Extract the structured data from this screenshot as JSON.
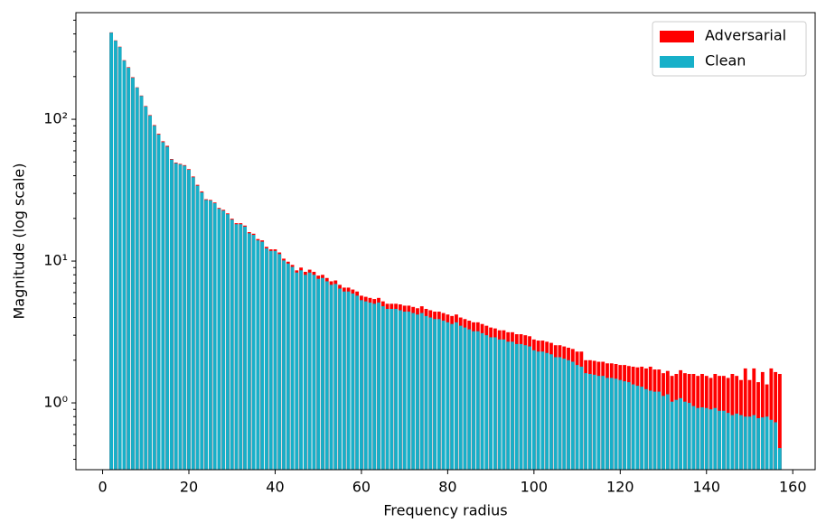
{
  "chart_data": {
    "type": "bar",
    "x_label": "Frequency radius",
    "y_label": "Magnitude (log scale)",
    "x": [
      2,
      3,
      4,
      5,
      6,
      7,
      8,
      9,
      10,
      11,
      12,
      13,
      14,
      15,
      16,
      17,
      18,
      19,
      20,
      21,
      22,
      23,
      24,
      25,
      26,
      27,
      28,
      29,
      30,
      31,
      32,
      33,
      34,
      35,
      36,
      37,
      38,
      39,
      40,
      41,
      42,
      43,
      44,
      45,
      46,
      47,
      48,
      49,
      50,
      51,
      52,
      53,
      54,
      55,
      56,
      57,
      58,
      59,
      60,
      61,
      62,
      63,
      64,
      65,
      66,
      67,
      68,
      69,
      70,
      71,
      72,
      73,
      74,
      75,
      76,
      77,
      78,
      79,
      80,
      81,
      82,
      83,
      84,
      85,
      86,
      87,
      88,
      89,
      90,
      91,
      92,
      93,
      94,
      95,
      96,
      97,
      98,
      99,
      100,
      101,
      102,
      103,
      104,
      105,
      106,
      107,
      108,
      109,
      110,
      111,
      112,
      113,
      114,
      115,
      116,
      117,
      118,
      119,
      120,
      121,
      122,
      123,
      124,
      125,
      126,
      127,
      128,
      129,
      130,
      131,
      132,
      133,
      134,
      135,
      136,
      137,
      138,
      139,
      140,
      141,
      142,
      143,
      144,
      145,
      146,
      147,
      148,
      149,
      150,
      151,
      152,
      153,
      154,
      155,
      156,
      157
    ],
    "series": [
      {
        "name": "Adversarial",
        "color": "#ff0000",
        "values": [
          410,
          360,
          325,
          261,
          233,
          198,
          168,
          147,
          124,
          107,
          91,
          79,
          70,
          65,
          52.5,
          49.5,
          48.5,
          47.5,
          44.5,
          39.5,
          34.5,
          31,
          27.3,
          27,
          25.9,
          23.7,
          23,
          21.7,
          19.9,
          18.5,
          18.5,
          17.8,
          16,
          15.6,
          14.3,
          14,
          12.6,
          12.1,
          12.1,
          11.5,
          10.4,
          9.9,
          9.4,
          8.6,
          9.0,
          8.4,
          8.7,
          8.4,
          7.9,
          8.0,
          7.6,
          7.2,
          7.3,
          6.8,
          6.5,
          6.5,
          6.3,
          6.1,
          5.7,
          5.6,
          5.5,
          5.4,
          5.5,
          5.2,
          5.0,
          5.0,
          5.0,
          4.95,
          4.85,
          4.85,
          4.75,
          4.65,
          4.8,
          4.6,
          4.5,
          4.4,
          4.4,
          4.3,
          4.2,
          4.1,
          4.2,
          4.0,
          3.9,
          3.8,
          3.7,
          3.7,
          3.6,
          3.5,
          3.4,
          3.35,
          3.25,
          3.25,
          3.15,
          3.15,
          3.05,
          3.05,
          3.0,
          2.95,
          2.8,
          2.75,
          2.75,
          2.7,
          2.65,
          2.55,
          2.55,
          2.5,
          2.45,
          2.4,
          2.3,
          2.3,
          2.0,
          2.0,
          1.98,
          1.95,
          1.95,
          1.9,
          1.9,
          1.88,
          1.85,
          1.85,
          1.82,
          1.8,
          1.78,
          1.8,
          1.75,
          1.8,
          1.72,
          1.72,
          1.62,
          1.68,
          1.55,
          1.6,
          1.7,
          1.62,
          1.6,
          1.6,
          1.55,
          1.6,
          1.55,
          1.5,
          1.6,
          1.55,
          1.55,
          1.5,
          1.6,
          1.55,
          1.45,
          1.75,
          1.45,
          1.75,
          1.4,
          1.65,
          1.35,
          1.75,
          1.65,
          1.6
        ]
      },
      {
        "name": "Clean",
        "color": "#17b0c9",
        "values": [
          408,
          358,
          323,
          259,
          231,
          196,
          167,
          146,
          123,
          106,
          90,
          78,
          69,
          64,
          52,
          49,
          48,
          47,
          44,
          39,
          34,
          30.5,
          27,
          26.7,
          25.6,
          23.4,
          22.7,
          21.4,
          19.6,
          18.2,
          18.2,
          17.5,
          15.7,
          15.3,
          14,
          13.7,
          12.3,
          11.8,
          11.8,
          11.2,
          10.1,
          9.6,
          9.1,
          8.3,
          8.6,
          8.0,
          8.3,
          8.0,
          7.5,
          7.6,
          7.2,
          6.8,
          6.9,
          6.4,
          6.1,
          6.1,
          5.9,
          5.7,
          5.3,
          5.2,
          5.1,
          5.0,
          5.1,
          4.8,
          4.6,
          4.6,
          4.6,
          4.5,
          4.4,
          4.4,
          4.3,
          4.2,
          4.3,
          4.1,
          4.0,
          3.9,
          3.9,
          3.8,
          3.7,
          3.6,
          3.7,
          3.5,
          3.4,
          3.3,
          3.2,
          3.2,
          3.1,
          3.0,
          2.9,
          2.9,
          2.8,
          2.8,
          2.7,
          2.7,
          2.6,
          2.6,
          2.55,
          2.5,
          2.35,
          2.3,
          2.3,
          2.25,
          2.2,
          2.1,
          2.1,
          2.05,
          2.0,
          1.95,
          1.85,
          1.8,
          1.62,
          1.6,
          1.58,
          1.55,
          1.55,
          1.5,
          1.5,
          1.48,
          1.45,
          1.42,
          1.4,
          1.35,
          1.32,
          1.3,
          1.25,
          1.22,
          1.2,
          1.2,
          1.12,
          1.15,
          1.02,
          1.05,
          1.08,
          1.02,
          1.0,
          0.95,
          0.92,
          0.93,
          0.92,
          0.9,
          0.92,
          0.88,
          0.88,
          0.85,
          0.82,
          0.84,
          0.82,
          0.8,
          0.8,
          0.82,
          0.78,
          0.79,
          0.8,
          0.76,
          0.73,
          0.48
        ]
      }
    ],
    "bar_width": 0.8,
    "log_y": true,
    "xlim": [
      -6.19,
      165.19
    ],
    "ylim": [
      0.338,
      565
    ],
    "xticks": [
      0,
      20,
      40,
      60,
      80,
      100,
      120,
      140,
      160
    ],
    "yticks": [
      {
        "value": 1,
        "label": "10⁰"
      },
      {
        "value": 10,
        "label": "10¹"
      },
      {
        "value": 100,
        "label": "10²"
      }
    ],
    "legend": "upper right"
  }
}
